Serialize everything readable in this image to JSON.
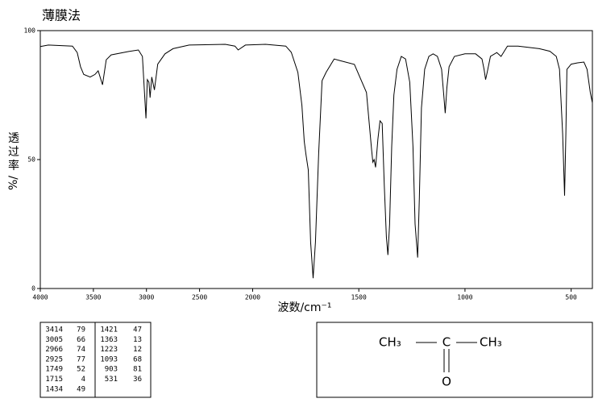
{
  "chart_data": {
    "type": "line",
    "title": "薄膜法",
    "y_label_chars": [
      "透",
      "过",
      "率"
    ],
    "y_label_unit": "%/",
    "x_label": "波数/cm⁻¹",
    "x_scale_break": 2000,
    "x_scale_ratio": 2,
    "xlim": [
      4000,
      400
    ],
    "xticks": [
      4000,
      3500,
      3000,
      2500,
      2000,
      1500,
      1000,
      500
    ],
    "ylim": [
      0,
      100
    ],
    "yticks": [
      0,
      50,
      100
    ],
    "color": "#000000",
    "x": [
      4000,
      3924,
      3697,
      3652,
      3621,
      3591,
      3530,
      3485,
      3455,
      3414,
      3379,
      3333,
      3167,
      3076,
      3038,
      3005,
      2992,
      2977,
      2966,
      2950,
      2925,
      2894,
      2826,
      2750,
      2598,
      2258,
      2167,
      2136,
      2068,
      1939,
      1844,
      1818,
      1787,
      1768,
      1757,
      1749,
      1738,
      1727,
      1715,
      1704,
      1689,
      1673,
      1654,
      1616,
      1590,
      1521,
      1464,
      1440,
      1434,
      1428,
      1421,
      1410,
      1400,
      1390,
      1380,
      1370,
      1363,
      1355,
      1345,
      1335,
      1320,
      1300,
      1280,
      1260,
      1245,
      1235,
      1223,
      1215,
      1205,
      1190,
      1170,
      1150,
      1130,
      1110,
      1100,
      1093,
      1085,
      1075,
      1050,
      1000,
      950,
      920,
      910,
      903,
      895,
      880,
      850,
      830,
      800,
      750,
      650,
      600,
      570,
      555,
      540,
      531,
      525,
      520,
      500,
      470,
      440,
      425,
      410,
      400
    ],
    "values": [
      93.8,
      94.4,
      94,
      91.5,
      86,
      83,
      82,
      83,
      84.4,
      79,
      88.7,
      90.6,
      91.9,
      92.5,
      90,
      66,
      81,
      80,
      74,
      82,
      77,
      87,
      91,
      93,
      94.4,
      94.7,
      94,
      92.5,
      94.4,
      94.7,
      94,
      91.6,
      83.8,
      71,
      57,
      52,
      46,
      18,
      4,
      18,
      52.5,
      80.6,
      83.8,
      89,
      88.4,
      86.9,
      76,
      54,
      49,
      50,
      47,
      58,
      65,
      64,
      40,
      20,
      13,
      25,
      55,
      75,
      85,
      90,
      89,
      80,
      55,
      25,
      12,
      35,
      70,
      85,
      90,
      91,
      90,
      85,
      75,
      68,
      78,
      86,
      90,
      91,
      91,
      89,
      85,
      81,
      84,
      90,
      91.5,
      90,
      94,
      94,
      93,
      92,
      90,
      85,
      60,
      36,
      60,
      85,
      87,
      87.5,
      87.8,
      85,
      76,
      72
    ]
  },
  "peak_table": {
    "left": [
      [
        3414,
        79
      ],
      [
        3005,
        66
      ],
      [
        2966,
        74
      ],
      [
        2925,
        77
      ],
      [
        1749,
        52
      ],
      [
        1715,
        4
      ],
      [
        1434,
        49
      ]
    ],
    "right": [
      [
        1421,
        47
      ],
      [
        1363,
        13
      ],
      [
        1223,
        12
      ],
      [
        1093,
        68
      ],
      [
        903,
        81
      ],
      [
        531,
        36
      ]
    ]
  },
  "structure": {
    "left": "CH₃",
    "center": "C",
    "right": "CH₃",
    "bottom": "O"
  }
}
